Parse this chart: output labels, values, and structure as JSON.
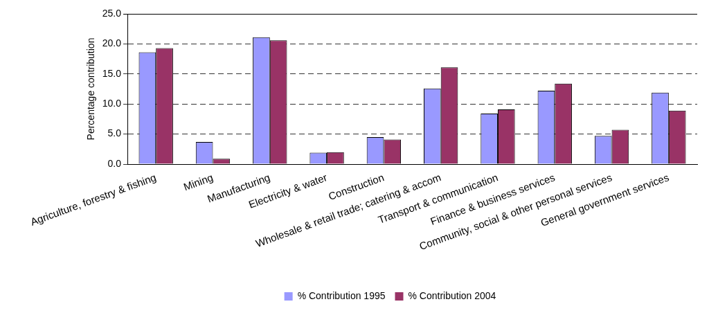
{
  "chart_data": {
    "type": "bar",
    "ylabel": "Percentage contribution",
    "categories": [
      "Agriculture, forestry & fishing",
      "Mining",
      "Manufacturing",
      "Electricity & water",
      "Construction",
      "Wholesale & retail trade; catering & accom",
      "Transport & communication",
      "Finance & business services",
      "Community, social & other personal services",
      "General government services"
    ],
    "series": [
      {
        "name": "% Contribution 1995",
        "color": "#9999ff",
        "values": [
          18.6,
          3.7,
          21.1,
          1.9,
          4.5,
          12.6,
          8.4,
          12.2,
          4.7,
          11.9
        ]
      },
      {
        "name": "% Contribution 2004",
        "color": "#993366",
        "values": [
          19.3,
          0.9,
          20.6,
          2.0,
          4.1,
          16.1,
          9.1,
          13.4,
          5.7,
          8.9
        ]
      }
    ],
    "ylim": [
      0,
      25
    ],
    "yticks": [
      {
        "value": 0,
        "label": "0.0"
      },
      {
        "value": 5,
        "label": "5.0"
      },
      {
        "value": 10,
        "label": "10.0"
      },
      {
        "value": 15,
        "label": "15.0"
      },
      {
        "value": 20,
        "label": "20.0"
      },
      {
        "value": 25,
        "label": "25.0"
      }
    ],
    "grid": "y",
    "legend": "bottom"
  }
}
